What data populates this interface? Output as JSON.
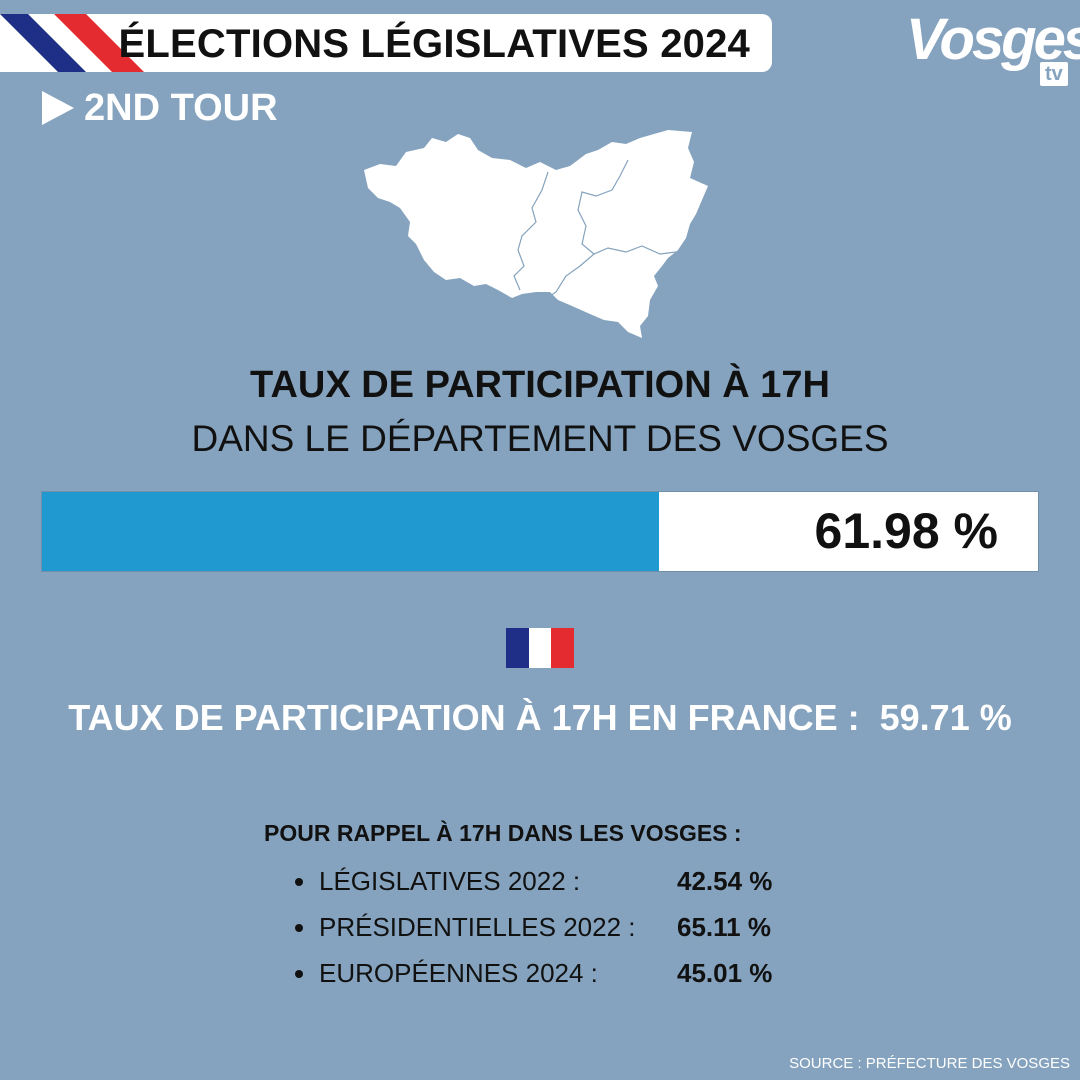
{
  "header": {
    "title": "ÉLECTIONS LÉGISLATIVES 2024",
    "round": "2ND TOUR"
  },
  "logo": {
    "name": "Vosges",
    "suffix": "tv"
  },
  "turnout": {
    "title": "TAUX DE PARTICIPATION À 17H",
    "subtitle": "DANS LE DÉPARTEMENT DES VOSGES",
    "value": 61.98,
    "value_label": "61.98 %",
    "fill_color": "#1f99cf"
  },
  "france": {
    "text": "TAUX DE PARTICIPATION À 17H EN FRANCE :  59.71 %",
    "value": 59.71
  },
  "recall": {
    "title": "POUR RAPPEL À 17H DANS LES VOSGES :",
    "items": [
      {
        "label": "LÉGISLATIVES 2022 :",
        "value": "42.54 %"
      },
      {
        "label": "PRÉSIDENTIELLES 2022 :",
        "value": "65.11 %"
      },
      {
        "label": "EUROPÉENNES 2024 :",
        "value": "45.01 %"
      }
    ]
  },
  "source": "SOURCE : PRÉFECTURE DES VOSGES",
  "colors": {
    "background": "#85a3be",
    "flag_blue": "#1f2f87",
    "flag_white": "#ffffff",
    "flag_red": "#e42b2f"
  }
}
